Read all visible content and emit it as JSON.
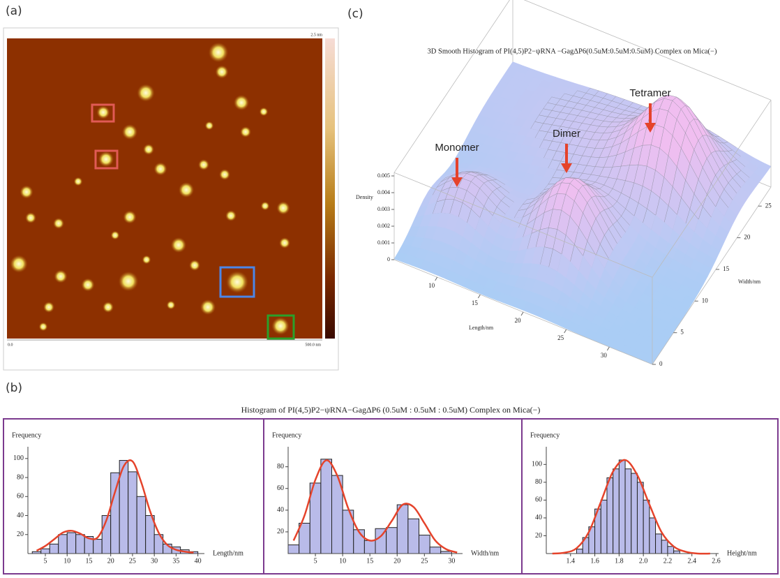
{
  "panels": {
    "a": "(a)",
    "b": "(b)",
    "c": "(c)"
  },
  "afm": {
    "scale_max": "2.5 nm",
    "axis_start": "0.0",
    "axis_end": "500.0 nm"
  },
  "surface_plot": {
    "title": "3D Smooth Histogram of PI(4,5)P2−ψRNA −GagΔP6(0.5uM:0.5uM:0.5uM) Complex on Mica(−)",
    "zlabel": "Density",
    "xlabel": "Length/nm",
    "ylabel": "Width/nm",
    "zticks": [
      0,
      0.001,
      0.002,
      0.003,
      0.004,
      0.005
    ],
    "xticks": [
      10,
      15,
      20,
      25,
      30
    ],
    "yticks": [
      0,
      5,
      10,
      15,
      20,
      25
    ],
    "annotations": [
      "Monomer",
      "Dimer",
      "Tetramer"
    ]
  },
  "histogram_title": "Histogram of PI(4,5)P2−ψRNA−GagΔP6 (0.5uM : 0.5uM : 0.5uM) Complex on Mica(−)",
  "chart_data": [
    {
      "type": "histogram",
      "ylabel": "Frequency",
      "xlabel": "Length/nm",
      "color": "#b9bbe9",
      "fit_color": "#e5432b",
      "bins": [
        2,
        4,
        6,
        8,
        10,
        12,
        14,
        16,
        18,
        20,
        22,
        24,
        26,
        28,
        30,
        32,
        34,
        36,
        38,
        40
      ],
      "values": [
        2,
        5,
        10,
        20,
        22,
        20,
        18,
        15,
        40,
        85,
        98,
        86,
        60,
        40,
        20,
        10,
        7,
        4,
        2
      ],
      "fit_x": [
        3,
        5,
        7,
        9,
        11,
        13,
        15,
        17,
        19,
        21,
        23,
        25,
        27,
        29,
        31,
        33,
        35,
        37,
        39
      ],
      "fit_values": [
        3,
        8,
        15,
        22,
        24,
        21,
        16,
        17,
        35,
        65,
        92,
        97,
        75,
        45,
        22,
        9,
        4,
        2,
        1
      ],
      "xlim": [
        1,
        41.5
      ],
      "ylim": [
        0,
        105
      ],
      "xticks": [
        5,
        10,
        15,
        20,
        25,
        30,
        35,
        40
      ],
      "yticks": [
        20,
        40,
        60,
        80,
        100
      ]
    },
    {
      "type": "histogram",
      "ylabel": "Frequency",
      "xlabel": "Width/nm",
      "color": "#b9bbe9",
      "fit_color": "#e5432b",
      "bins": [
        0,
        2,
        4,
        6,
        8,
        10,
        12,
        14,
        16,
        18,
        20,
        22,
        24,
        26,
        28,
        30
      ],
      "values": [
        8,
        28,
        65,
        87,
        72,
        40,
        22,
        12,
        23,
        24,
        45,
        32,
        17,
        6,
        2
      ],
      "fit_x": [
        1,
        3,
        5,
        7,
        9,
        11,
        13,
        15,
        17,
        19,
        21,
        23,
        25,
        27,
        29,
        31
      ],
      "fit_values": [
        12,
        35,
        68,
        86,
        72,
        42,
        20,
        12,
        16,
        30,
        45,
        43,
        28,
        12,
        4,
        1
      ],
      "xlim": [
        0,
        32
      ],
      "ylim": [
        0,
        92
      ],
      "xticks": [
        5,
        10,
        15,
        20,
        25,
        30
      ],
      "yticks": [
        20,
        40,
        60,
        80
      ]
    },
    {
      "type": "histogram",
      "ylabel": "Frequency",
      "xlabel": "Height/nm",
      "color": "#b9bbe9",
      "fit_color": "#e5432b",
      "bins": [
        1.45,
        1.5,
        1.55,
        1.6,
        1.65,
        1.7,
        1.75,
        1.8,
        1.85,
        1.9,
        1.95,
        2.0,
        2.05,
        2.1,
        2.15,
        2.2,
        2.25,
        2.3
      ],
      "values": [
        5,
        18,
        30,
        50,
        60,
        85,
        95,
        105,
        95,
        90,
        80,
        60,
        40,
        22,
        15,
        8,
        3
      ],
      "fit_x": [
        1.25,
        1.35,
        1.45,
        1.55,
        1.65,
        1.75,
        1.85,
        1.95,
        2.05,
        2.15,
        2.25,
        2.35,
        2.45,
        2.55
      ],
      "fit_values": [
        0,
        1,
        6,
        24,
        58,
        92,
        105,
        88,
        55,
        24,
        8,
        2,
        0,
        0
      ],
      "xlim": [
        1.2,
        2.62
      ],
      "ylim": [
        0,
        112
      ],
      "xticks": [
        1.4,
        1.6,
        1.8,
        {
          "value": 2,
          "label": "2.0"
        },
        2.2,
        2.4,
        2.6
      ],
      "yticks": [
        20,
        40,
        60,
        80,
        100
      ]
    }
  ]
}
